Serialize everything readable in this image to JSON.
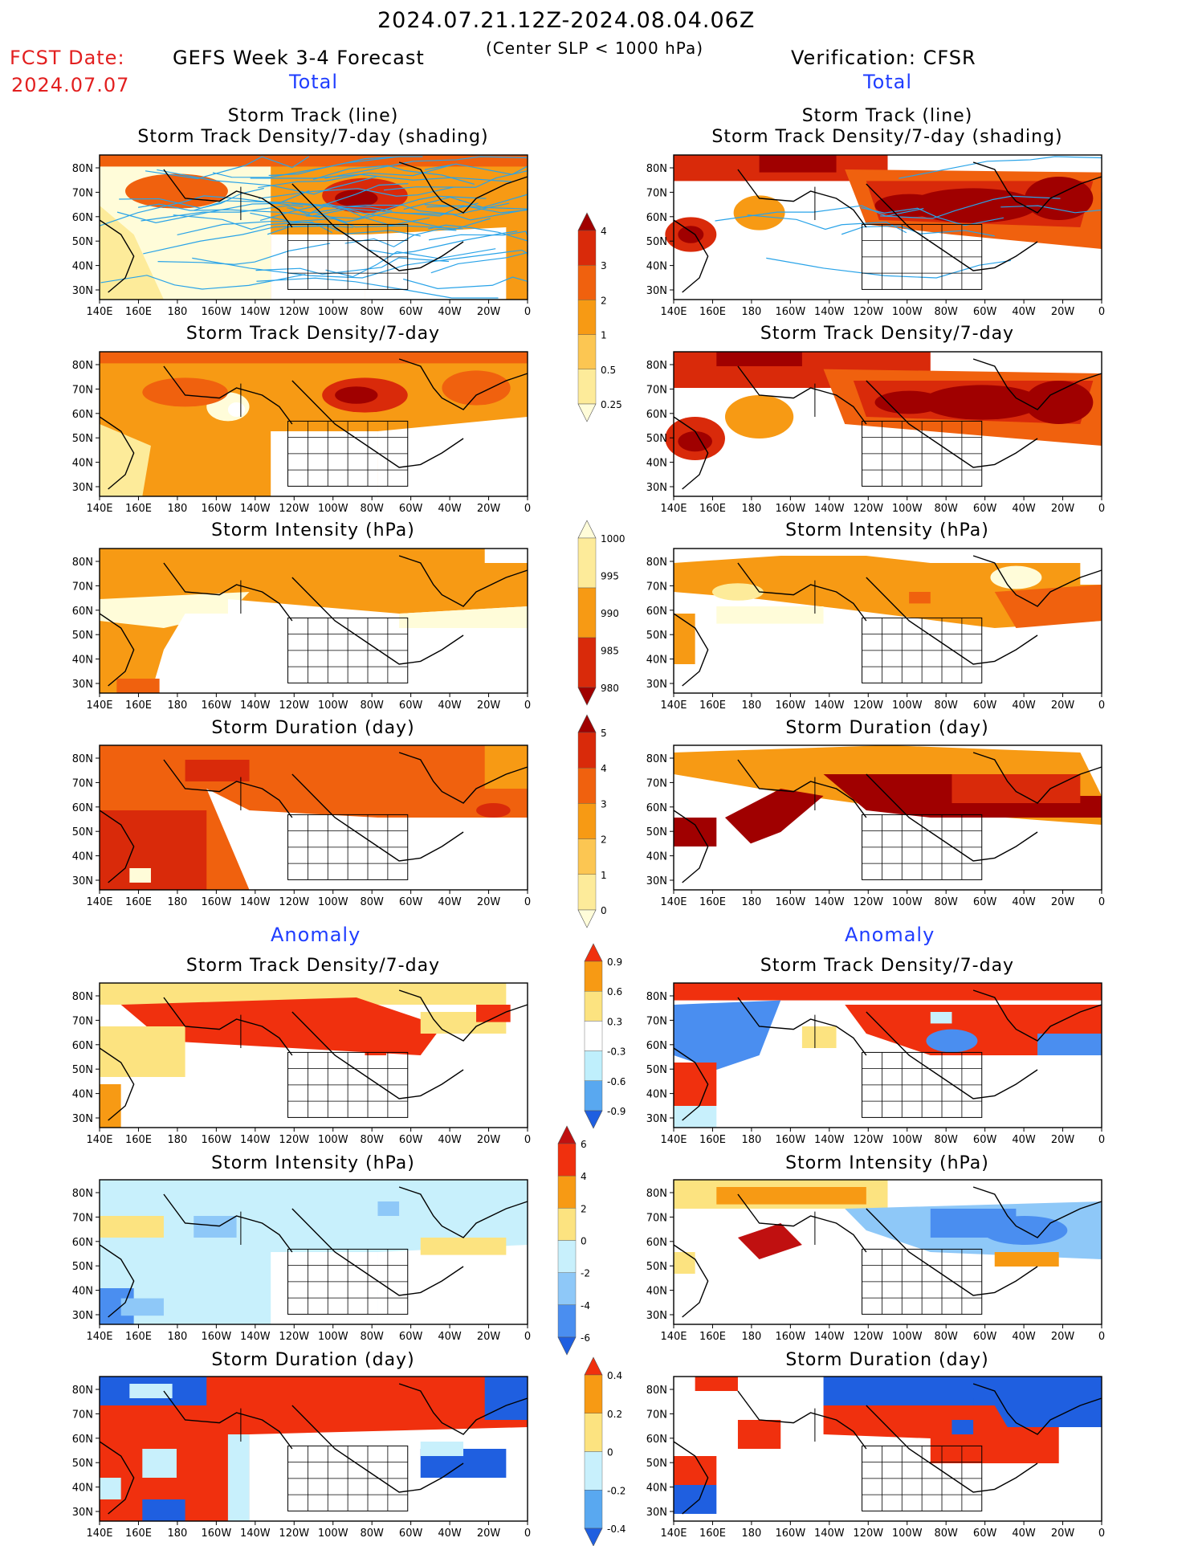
{
  "header": {
    "date_range": "2024.07.21.12Z-2024.08.04.06Z",
    "subtitle": "(Center SLP < 1000 hPa)",
    "fcst_label": "FCST Date:",
    "fcst_date": "2024.07.07",
    "left_title": "GEFS Week 3-4 Forecast",
    "right_title": "Verification: CFSR",
    "section_total": "Total",
    "section_anomaly": "Anomaly"
  },
  "axes": {
    "lat_labels": [
      "80N",
      "70N",
      "60N",
      "50N",
      "40N",
      "30N"
    ],
    "lon_labels": [
      "140E",
      "160E",
      "180",
      "160W",
      "140W",
      "120W",
      "100W",
      "80W",
      "60W",
      "40W",
      "20W",
      "0"
    ]
  },
  "panels": {
    "track_title_1": "Storm Track (line)",
    "track_title_2": "Storm Track Density/7-day (shading)",
    "density": "Storm Track Density/7-day",
    "intensity": "Storm Intensity (hPa)",
    "duration": "Storm Duration (day)"
  },
  "colorbars": {
    "density_total": {
      "labels": [
        "4",
        "3",
        "2",
        "1",
        "0.5",
        "0.25"
      ],
      "colors": [
        "#a00000",
        "#d92a0a",
        "#f0610e",
        "#f79a14",
        "#fcc652",
        "#fdeb9a",
        "#fffcd9"
      ]
    },
    "intensity_total": {
      "labels": [
        "1000",
        "995",
        "990",
        "985",
        "980"
      ],
      "colors": [
        "#fffcd9",
        "#fdeb9a",
        "#f79a14",
        "#d92a0a",
        "#a00000"
      ]
    },
    "duration_total": {
      "labels": [
        "5",
        "4",
        "3",
        "2",
        "1",
        "0"
      ],
      "colors": [
        "#a00000",
        "#d92a0a",
        "#f0610e",
        "#f79a14",
        "#fcc652",
        "#fdeb9a",
        "#fffcd9"
      ]
    },
    "density_anom": {
      "labels": [
        "0.9",
        "0.6",
        "0.3",
        "-0.3",
        "-0.6",
        "-0.9"
      ],
      "colors": [
        "#f0300e",
        "#f79a14",
        "#fce380",
        "#ffffff",
        "#bfeffc",
        "#59a8f0",
        "#1f5fe0"
      ]
    },
    "intensity_anom": {
      "labels": [
        "6",
        "4",
        "2",
        "0",
        "-2",
        "-4",
        "-6"
      ],
      "colors": [
        "#c01010",
        "#f0300e",
        "#f79a14",
        "#fce380",
        "#c8f0fc",
        "#8ec8f8",
        "#4a8ef0",
        "#1f5fe0"
      ]
    },
    "duration_anom": {
      "labels": [
        "0.4",
        "0.2",
        "0",
        "-0.2",
        "-0.4"
      ],
      "colors": [
        "#f0300e",
        "#f79a14",
        "#fce380",
        "#c8f0fc",
        "#59a8f0",
        "#1f5fe0"
      ]
    }
  }
}
